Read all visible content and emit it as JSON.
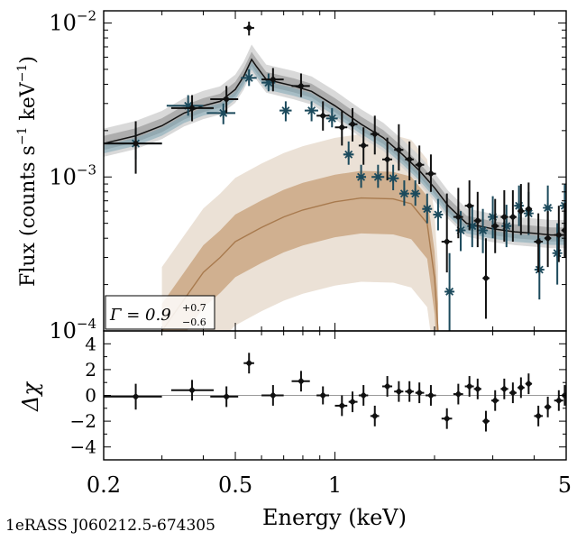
{
  "source_label": "1eRASS J060212.5-674305",
  "gamma_label": {
    "symbol": "Γ = 0.9",
    "sup": "+0.7",
    "sub": "−0.6"
  },
  "colors": {
    "black_data": "#111111",
    "blue_data": "#1c4a5c",
    "brown_model": "#a87a4e",
    "brown_band_light": "#e8dccf",
    "brown_band_dark": "#c9a47e",
    "gray_band_light": "#d2d2d2",
    "gray_band_dark": "#9e9e9e",
    "blue_band": "#7ea6b5"
  },
  "chart_data": [
    {
      "type": "line",
      "panel": "spectrum",
      "title": "",
      "xlabel": "",
      "ylabel_parts": {
        "prefix": "Flux (counts s",
        "sup1": "−1",
        "mid": " keV",
        "sup2": "−1",
        "suffix": ")"
      },
      "xscale": "log",
      "yscale": "log",
      "xlim": [
        0.2,
        5
      ],
      "ylim": [
        0.0001,
        0.012
      ],
      "ytick_labels": [
        {
          "value": 0.01,
          "base": "10",
          "exp": "−2"
        },
        {
          "value": 0.001,
          "base": "10",
          "exp": "−3"
        },
        {
          "value": 0.0001,
          "base": "10",
          "exp": "−4"
        }
      ],
      "series": [
        {
          "name": "model_total",
          "x": [
            0.2,
            0.25,
            0.3,
            0.35,
            0.4,
            0.45,
            0.5,
            0.53,
            0.56,
            0.58,
            0.62,
            0.68,
            0.75,
            0.85,
            1.0,
            1.2,
            1.4,
            1.6,
            1.8,
            2.0,
            2.2,
            2.5,
            3.0,
            3.5,
            4.0,
            4.5,
            5.0
          ],
          "y": [
            0.00165,
            0.00185,
            0.00215,
            0.0026,
            0.0029,
            0.0031,
            0.0037,
            0.0045,
            0.0058,
            0.0052,
            0.0043,
            0.0041,
            0.0039,
            0.0036,
            0.0029,
            0.0022,
            0.0018,
            0.0014,
            0.0011,
            0.00085,
            0.00065,
            0.0005,
            0.00046,
            0.00044,
            0.00043,
            0.00042,
            0.00042
          ]
        },
        {
          "name": "model_brown",
          "x": [
            0.3,
            0.35,
            0.4,
            0.45,
            0.5,
            0.6,
            0.7,
            0.8,
            1.0,
            1.2,
            1.5,
            1.7,
            1.9,
            2.0,
            2.05
          ],
          "y": [
            0.0001,
            0.00016,
            0.00024,
            0.0003,
            0.00038,
            0.00047,
            0.00055,
            0.00061,
            0.00069,
            0.00073,
            0.00072,
            0.00067,
            0.0005,
            0.00022,
            0.0001
          ]
        },
        {
          "name": "data_black",
          "points": [
            {
              "x": 0.25,
              "y": 0.00165,
              "xlo": 0.2,
              "xhi": 0.3,
              "ylo": 0.00105,
              "yhi": 0.0023
            },
            {
              "x": 0.37,
              "y": 0.0028,
              "xlo": 0.32,
              "xhi": 0.43,
              "ylo": 0.0023,
              "yhi": 0.0034
            },
            {
              "x": 0.47,
              "y": 0.0032,
              "xlo": 0.42,
              "xhi": 0.51,
              "ylo": 0.0026,
              "yhi": 0.0039
            },
            {
              "x": 0.55,
              "y": 0.0093,
              "xlo": 0.53,
              "xhi": 0.57,
              "ylo": 0.0083,
              "yhi": 0.0102
            },
            {
              "x": 0.65,
              "y": 0.0043,
              "xlo": 0.6,
              "xhi": 0.7,
              "ylo": 0.0036,
              "yhi": 0.0051
            },
            {
              "x": 0.79,
              "y": 0.0039,
              "xlo": 0.74,
              "xhi": 0.84,
              "ylo": 0.0033,
              "yhi": 0.0047
            },
            {
              "x": 0.92,
              "y": 0.0025,
              "xlo": 0.88,
              "xhi": 0.96,
              "ylo": 0.002,
              "yhi": 0.0031
            },
            {
              "x": 1.05,
              "y": 0.0021,
              "xlo": 1.0,
              "xhi": 1.09,
              "ylo": 0.0016,
              "yhi": 0.0027
            },
            {
              "x": 1.13,
              "y": 0.0022,
              "xlo": 1.1,
              "xhi": 1.17,
              "ylo": 0.0017,
              "yhi": 0.0028
            },
            {
              "x": 1.22,
              "y": 0.0016,
              "xlo": 1.18,
              "xhi": 1.26,
              "ylo": 0.0012,
              "yhi": 0.0021
            },
            {
              "x": 1.32,
              "y": 0.0019,
              "xlo": 1.28,
              "xhi": 1.36,
              "ylo": 0.0014,
              "yhi": 0.0025
            },
            {
              "x": 1.44,
              "y": 0.0013,
              "xlo": 1.39,
              "xhi": 1.49,
              "ylo": 0.00095,
              "yhi": 0.0018
            },
            {
              "x": 1.56,
              "y": 0.0015,
              "xlo": 1.51,
              "xhi": 1.61,
              "ylo": 0.0011,
              "yhi": 0.0022
            },
            {
              "x": 1.68,
              "y": 0.0013,
              "xlo": 1.63,
              "xhi": 1.73,
              "ylo": 0.00095,
              "yhi": 0.0017
            },
            {
              "x": 1.8,
              "y": 0.0012,
              "xlo": 1.75,
              "xhi": 1.86,
              "ylo": 0.0009,
              "yhi": 0.0016
            },
            {
              "x": 1.95,
              "y": 0.00105,
              "xlo": 1.88,
              "xhi": 2.02,
              "ylo": 0.0008,
              "yhi": 0.0014
            },
            {
              "x": 2.18,
              "y": 0.00038,
              "xlo": 2.1,
              "xhi": 2.26,
              "ylo": 0.00024,
              "yhi": 0.00078
            },
            {
              "x": 2.36,
              "y": 0.00055,
              "xlo": 2.28,
              "xhi": 2.44,
              "ylo": 0.0004,
              "yhi": 0.00085
            },
            {
              "x": 2.55,
              "y": 0.00065,
              "xlo": 2.47,
              "xhi": 2.63,
              "ylo": 0.00045,
              "yhi": 0.00095
            },
            {
              "x": 2.7,
              "y": 0.00052,
              "xlo": 2.63,
              "xhi": 2.77,
              "ylo": 0.00035,
              "yhi": 0.0008
            },
            {
              "x": 2.86,
              "y": 0.00022,
              "xlo": 2.8,
              "xhi": 2.93,
              "ylo": 0.00012,
              "yhi": 0.0004
            },
            {
              "x": 3.05,
              "y": 0.00048,
              "xlo": 2.97,
              "xhi": 3.13,
              "ylo": 0.00032,
              "yhi": 0.00072
            },
            {
              "x": 3.25,
              "y": 0.00055,
              "xlo": 3.17,
              "xhi": 3.34,
              "ylo": 0.00038,
              "yhi": 0.00082
            },
            {
              "x": 3.45,
              "y": 0.00055,
              "xlo": 3.37,
              "xhi": 3.54,
              "ylo": 0.00038,
              "yhi": 0.00082
            },
            {
              "x": 3.65,
              "y": 0.0006,
              "xlo": 3.57,
              "xhi": 3.74,
              "ylo": 0.00042,
              "yhi": 0.0009
            },
            {
              "x": 3.85,
              "y": 0.00062,
              "xlo": 3.77,
              "xhi": 3.94,
              "ylo": 0.00043,
              "yhi": 0.00092
            },
            {
              "x": 4.12,
              "y": 0.00038,
              "xlo": 4.0,
              "xhi": 4.25,
              "ylo": 0.00024,
              "yhi": 0.00058
            },
            {
              "x": 4.4,
              "y": 0.0004,
              "xlo": 4.3,
              "xhi": 4.5,
              "ylo": 0.00026,
              "yhi": 0.0006
            },
            {
              "x": 4.75,
              "y": 0.00042,
              "xlo": 4.6,
              "xhi": 4.9,
              "ylo": 0.00028,
              "yhi": 0.00065
            },
            {
              "x": 4.95,
              "y": 0.00045,
              "xlo": 4.85,
              "xhi": 5.0,
              "ylo": 0.0003,
              "yhi": 0.00068
            }
          ]
        },
        {
          "name": "data_blue",
          "points": [
            {
              "x": 0.25,
              "y": 0.00165,
              "xlo": 0.2,
              "xhi": 0.3,
              "ylo": 0.0013,
              "yhi": 0.0021
            },
            {
              "x": 0.36,
              "y": 0.0029,
              "xlo": 0.31,
              "xhi": 0.4,
              "ylo": 0.0025,
              "yhi": 0.0034
            },
            {
              "x": 0.46,
              "y": 0.0026,
              "xlo": 0.41,
              "xhi": 0.5,
              "ylo": 0.0022,
              "yhi": 0.003
            },
            {
              "x": 0.55,
              "y": 0.0044,
              "xlo": 0.52,
              "xhi": 0.58,
              "ylo": 0.0039,
              "yhi": 0.005
            },
            {
              "x": 0.63,
              "y": 0.0041,
              "xlo": 0.6,
              "xhi": 0.66,
              "ylo": 0.0036,
              "yhi": 0.0047
            },
            {
              "x": 0.71,
              "y": 0.0027,
              "xlo": 0.68,
              "xhi": 0.74,
              "ylo": 0.0023,
              "yhi": 0.0031
            },
            {
              "x": 0.85,
              "y": 0.0027,
              "xlo": 0.81,
              "xhi": 0.89,
              "ylo": 0.0023,
              "yhi": 0.0031
            },
            {
              "x": 0.98,
              "y": 0.0024,
              "xlo": 0.94,
              "xhi": 1.02,
              "ylo": 0.0021,
              "yhi": 0.0028
            },
            {
              "x": 1.1,
              "y": 0.0014,
              "xlo": 1.06,
              "xhi": 1.14,
              "ylo": 0.0012,
              "yhi": 0.0017
            },
            {
              "x": 1.2,
              "y": 0.001,
              "xlo": 1.16,
              "xhi": 1.24,
              "ylo": 0.00085,
              "yhi": 0.0012
            },
            {
              "x": 1.35,
              "y": 0.001,
              "xlo": 1.29,
              "xhi": 1.41,
              "ylo": 0.00085,
              "yhi": 0.0012
            },
            {
              "x": 1.5,
              "y": 0.00098,
              "xlo": 1.44,
              "xhi": 1.56,
              "ylo": 0.00082,
              "yhi": 0.0012
            },
            {
              "x": 1.62,
              "y": 0.00078,
              "xlo": 1.57,
              "xhi": 1.67,
              "ylo": 0.00065,
              "yhi": 0.00095
            },
            {
              "x": 1.75,
              "y": 0.00078,
              "xlo": 1.7,
              "xhi": 1.8,
              "ylo": 0.00065,
              "yhi": 0.00095
            },
            {
              "x": 1.9,
              "y": 0.00062,
              "xlo": 1.84,
              "xhi": 1.96,
              "ylo": 0.0005,
              "yhi": 0.00078
            },
            {
              "x": 2.05,
              "y": 0.00057,
              "xlo": 1.99,
              "xhi": 2.11,
              "ylo": 0.00045,
              "yhi": 0.00072
            },
            {
              "x": 2.22,
              "y": 0.00018,
              "xlo": 2.16,
              "xhi": 2.28,
              "ylo": 0.0001,
              "yhi": 0.00032
            },
            {
              "x": 2.4,
              "y": 0.00045,
              "xlo": 2.33,
              "xhi": 2.47,
              "ylo": 0.00033,
              "yhi": 0.0006
            },
            {
              "x": 2.6,
              "y": 0.00048,
              "xlo": 2.52,
              "xhi": 2.68,
              "ylo": 0.00035,
              "yhi": 0.00065
            },
            {
              "x": 2.8,
              "y": 0.00045,
              "xlo": 2.72,
              "xhi": 2.88,
              "ylo": 0.00032,
              "yhi": 0.00062
            },
            {
              "x": 3.0,
              "y": 0.00055,
              "xlo": 2.92,
              "xhi": 3.08,
              "ylo": 0.0004,
              "yhi": 0.00075
            },
            {
              "x": 3.3,
              "y": 0.00048,
              "xlo": 3.2,
              "xhi": 3.4,
              "ylo": 0.00035,
              "yhi": 0.00066
            },
            {
              "x": 3.6,
              "y": 0.00065,
              "xlo": 3.5,
              "xhi": 3.7,
              "ylo": 0.00048,
              "yhi": 0.00088
            },
            {
              "x": 3.85,
              "y": 0.00058,
              "xlo": 3.76,
              "xhi": 3.94,
              "ylo": 0.00042,
              "yhi": 0.0008
            },
            {
              "x": 4.15,
              "y": 0.00025,
              "xlo": 4.05,
              "xhi": 4.25,
              "ylo": 0.00016,
              "yhi": 0.0004
            },
            {
              "x": 4.4,
              "y": 0.00063,
              "xlo": 4.3,
              "xhi": 4.5,
              "ylo": 0.00045,
              "yhi": 0.00088
            },
            {
              "x": 4.7,
              "y": 0.00032,
              "xlo": 4.6,
              "xhi": 4.8,
              "ylo": 0.0002,
              "yhi": 0.0005
            },
            {
              "x": 4.95,
              "y": 0.00065,
              "xlo": 4.9,
              "xhi": 5.0,
              "ylo": 0.00045,
              "yhi": 0.0009
            }
          ]
        }
      ]
    },
    {
      "type": "scatter",
      "panel": "residuals",
      "ylabel": "Δχ",
      "xlabel": "Energy (keV)",
      "xscale": "log",
      "xlim": [
        0.2,
        5
      ],
      "ylim": [
        -5,
        5
      ],
      "xtick_labels": [
        {
          "value": 0.2,
          "label": "0.2"
        },
        {
          "value": 0.5,
          "label": "0.5"
        },
        {
          "value": 1,
          "label": "1"
        },
        {
          "value": 5,
          "label": "5"
        }
      ],
      "ytick_labels": [
        {
          "value": 4,
          "label": "4"
        },
        {
          "value": 2,
          "label": "2"
        },
        {
          "value": 0,
          "label": "0"
        },
        {
          "value": -2,
          "label": "−2"
        },
        {
          "value": -4,
          "label": "−4"
        }
      ],
      "points": [
        {
          "x": 0.25,
          "y": -0.1,
          "xlo": 0.2,
          "xhi": 0.3,
          "ylo": -1.1,
          "yhi": 0.9
        },
        {
          "x": 0.37,
          "y": 0.4,
          "xlo": 0.32,
          "xhi": 0.43,
          "ylo": -0.4,
          "yhi": 1.2
        },
        {
          "x": 0.47,
          "y": -0.1,
          "xlo": 0.42,
          "xhi": 0.51,
          "ylo": -0.9,
          "yhi": 0.7
        },
        {
          "x": 0.55,
          "y": 2.5,
          "xlo": 0.53,
          "xhi": 0.57,
          "ylo": 1.7,
          "yhi": 3.3
        },
        {
          "x": 0.65,
          "y": 0.0,
          "xlo": 0.6,
          "xhi": 0.7,
          "ylo": -0.8,
          "yhi": 0.8
        },
        {
          "x": 0.79,
          "y": 1.1,
          "xlo": 0.74,
          "xhi": 0.84,
          "ylo": 0.3,
          "yhi": 1.9
        },
        {
          "x": 0.92,
          "y": 0.0,
          "xlo": 0.88,
          "xhi": 0.96,
          "ylo": -0.7,
          "yhi": 0.7
        },
        {
          "x": 1.05,
          "y": -0.8,
          "xlo": 1.0,
          "xhi": 1.09,
          "ylo": -1.6,
          "yhi": 0.0
        },
        {
          "x": 1.13,
          "y": -0.5,
          "xlo": 1.1,
          "xhi": 1.17,
          "ylo": -1.3,
          "yhi": 0.3
        },
        {
          "x": 1.22,
          "y": 0.0,
          "xlo": 1.18,
          "xhi": 1.26,
          "ylo": -0.8,
          "yhi": 0.8
        },
        {
          "x": 1.32,
          "y": -1.6,
          "xlo": 1.28,
          "xhi": 1.36,
          "ylo": -2.4,
          "yhi": -0.8
        },
        {
          "x": 1.44,
          "y": 0.7,
          "xlo": 1.39,
          "xhi": 1.49,
          "ylo": -0.1,
          "yhi": 1.5
        },
        {
          "x": 1.56,
          "y": 0.3,
          "xlo": 1.51,
          "xhi": 1.61,
          "ylo": -0.5,
          "yhi": 1.1
        },
        {
          "x": 1.68,
          "y": 0.3,
          "xlo": 1.63,
          "xhi": 1.73,
          "ylo": -0.5,
          "yhi": 1.1
        },
        {
          "x": 1.8,
          "y": 0.2,
          "xlo": 1.75,
          "xhi": 1.86,
          "ylo": -0.6,
          "yhi": 1.0
        },
        {
          "x": 1.95,
          "y": 0.0,
          "xlo": 1.88,
          "xhi": 2.02,
          "ylo": -0.8,
          "yhi": 0.8
        },
        {
          "x": 2.18,
          "y": -1.8,
          "xlo": 2.1,
          "xhi": 2.26,
          "ylo": -2.6,
          "yhi": -1.0
        },
        {
          "x": 2.36,
          "y": 0.1,
          "xlo": 2.28,
          "xhi": 2.44,
          "ylo": -0.7,
          "yhi": 0.9
        },
        {
          "x": 2.55,
          "y": 0.7,
          "xlo": 2.47,
          "xhi": 2.63,
          "ylo": -0.1,
          "yhi": 1.5
        },
        {
          "x": 2.7,
          "y": 0.5,
          "xlo": 2.63,
          "xhi": 2.77,
          "ylo": -0.3,
          "yhi": 1.3
        },
        {
          "x": 2.86,
          "y": -2.0,
          "xlo": 2.8,
          "xhi": 2.93,
          "ylo": -2.8,
          "yhi": -1.2
        },
        {
          "x": 3.05,
          "y": -0.4,
          "xlo": 2.97,
          "xhi": 3.13,
          "ylo": -1.2,
          "yhi": 0.4
        },
        {
          "x": 3.25,
          "y": 0.5,
          "xlo": 3.17,
          "xhi": 3.34,
          "ylo": -0.3,
          "yhi": 1.3
        },
        {
          "x": 3.45,
          "y": 0.2,
          "xlo": 3.37,
          "xhi": 3.54,
          "ylo": -0.6,
          "yhi": 1.0
        },
        {
          "x": 3.65,
          "y": 0.6,
          "xlo": 3.57,
          "xhi": 3.74,
          "ylo": -0.2,
          "yhi": 1.4
        },
        {
          "x": 3.85,
          "y": 0.9,
          "xlo": 3.77,
          "xhi": 3.94,
          "ylo": 0.1,
          "yhi": 1.7
        },
        {
          "x": 4.12,
          "y": -1.6,
          "xlo": 4.0,
          "xhi": 4.25,
          "ylo": -2.4,
          "yhi": -0.8
        },
        {
          "x": 4.4,
          "y": -0.9,
          "xlo": 4.3,
          "xhi": 4.5,
          "ylo": -1.7,
          "yhi": -0.1
        },
        {
          "x": 4.75,
          "y": -0.4,
          "xlo": 4.6,
          "xhi": 4.9,
          "ylo": -1.2,
          "yhi": 0.4
        },
        {
          "x": 4.95,
          "y": 0.0,
          "xlo": 4.85,
          "xhi": 5.0,
          "ylo": -0.8,
          "yhi": 0.8
        }
      ]
    }
  ]
}
